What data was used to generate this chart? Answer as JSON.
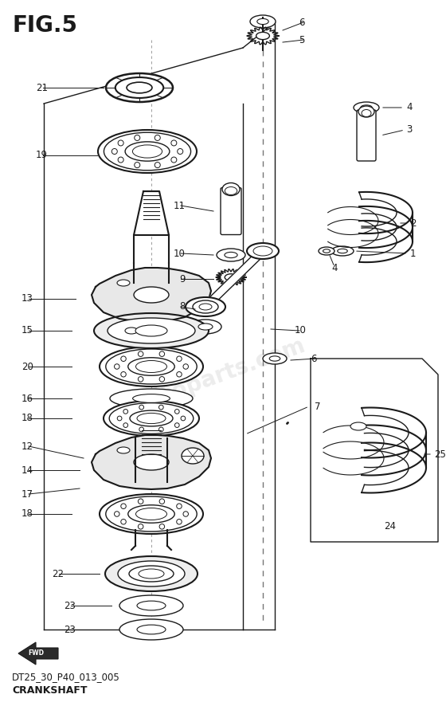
{
  "title": "FIG.5",
  "subtitle1": "DT25_30_P40_013_005",
  "subtitle2": "CRANKSHAFT",
  "bg_color": "#ffffff",
  "line_color": "#1a1a1a",
  "watermark": "altoparts.com",
  "figsize": [
    5.6,
    8.91
  ],
  "dpi": 100
}
